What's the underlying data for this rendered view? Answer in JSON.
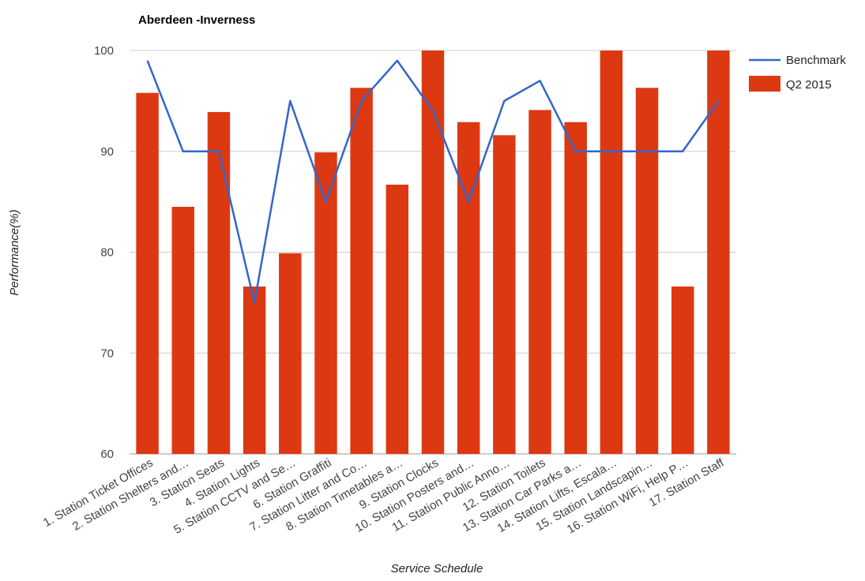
{
  "chart_data": {
    "type": "bar",
    "title": "Aberdeen -Inverness",
    "xlabel": "Service Schedule",
    "ylabel": "Performance(%)",
    "ylim": [
      60,
      100
    ],
    "yticks": [
      "60",
      "70",
      "80",
      "90",
      "100"
    ],
    "grid": true,
    "legend_position": "right",
    "categories": [
      "1. Station Ticket Offices",
      "2. Station Shelters and…",
      "3. Station Seats",
      "4. Station Lights",
      "5. Station CCTV and Se…",
      "6. Station Graffiti",
      "7. Station Litter and Co…",
      "8. Station Timetables a…",
      "9. Station Clocks",
      "10. Station Posters and…",
      "11. Station Public Anno…",
      "12. Station Toilets",
      "13. Station Car Parks a…",
      "14. Station Lifts, Escala…",
      "15. Station Landscapin…",
      "16. Station WiFi, Help P…",
      "17. Station Staff"
    ],
    "series": [
      {
        "name": "Q2 2015",
        "kind": "bar",
        "color": "#dc3912",
        "values": [
          95.8,
          84.5,
          93.9,
          76.6,
          79.9,
          89.9,
          96.3,
          86.7,
          100,
          92.9,
          91.6,
          94.1,
          92.9,
          100,
          96.3,
          76.6,
          100
        ]
      },
      {
        "name": "Benchmark",
        "kind": "line",
        "color": "#3366cc",
        "values": [
          99,
          90,
          90,
          75,
          95,
          85,
          95,
          99,
          94,
          85,
          95,
          97,
          90,
          90,
          90,
          90,
          95
        ]
      }
    ]
  }
}
